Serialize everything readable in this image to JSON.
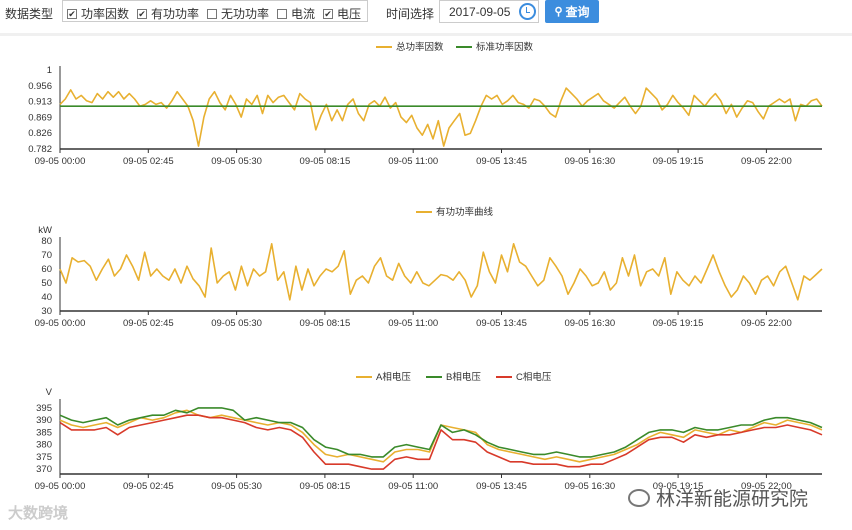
{
  "toolbar": {
    "data_type_label": "数据类型",
    "options": [
      {
        "label": "功率因数",
        "checked": true
      },
      {
        "label": "有功功率",
        "checked": true
      },
      {
        "label": "无功功率",
        "checked": false
      },
      {
        "label": "电流",
        "checked": false
      },
      {
        "label": "电压",
        "checked": true
      }
    ],
    "time_label": "时间选择",
    "date_value": "2017-09-05",
    "query_label": "查询",
    "accent": "#3c8dde"
  },
  "watermarks": {
    "left": "大数跨境",
    "right": "林洋新能源研究院"
  },
  "chart_data": [
    {
      "type": "line",
      "x_ticks": [
        "09-05 00:00",
        "09-05 02:45",
        "09-05 05:30",
        "09-05 08:15",
        "09-05 11:00",
        "09-05 13:45",
        "09-05 16:30",
        "09-05 19:15",
        "09-05 22:00"
      ],
      "y_ticks": [
        "1",
        "0.956",
        "0.913",
        "0.869",
        "0.826",
        "0.782"
      ],
      "ylim": [
        0.782,
        1
      ],
      "ylabel": "",
      "series": [
        {
          "name": "总功率因数",
          "color": "#e8b030",
          "values": [
            0.905,
            0.92,
            0.945,
            0.92,
            0.93,
            0.915,
            0.91,
            0.935,
            0.92,
            0.94,
            0.925,
            0.94,
            0.92,
            0.935,
            0.92,
            0.9,
            0.905,
            0.915,
            0.905,
            0.91,
            0.895,
            0.915,
            0.94,
            0.92,
            0.9,
            0.86,
            0.79,
            0.87,
            0.92,
            0.94,
            0.91,
            0.89,
            0.93,
            0.905,
            0.87,
            0.92,
            0.905,
            0.93,
            0.88,
            0.93,
            0.91,
            0.925,
            0.93,
            0.91,
            0.89,
            0.935,
            0.92,
            0.91,
            0.835,
            0.875,
            0.905,
            0.86,
            0.89,
            0.86,
            0.905,
            0.92,
            0.88,
            0.86,
            0.905,
            0.915,
            0.9,
            0.925,
            0.895,
            0.91,
            0.87,
            0.855,
            0.875,
            0.84,
            0.82,
            0.85,
            0.81,
            0.86,
            0.79,
            0.84,
            0.86,
            0.88,
            0.82,
            0.825,
            0.86,
            0.9,
            0.93,
            0.92,
            0.93,
            0.905,
            0.915,
            0.93,
            0.91,
            0.905,
            0.895,
            0.92,
            0.915,
            0.9,
            0.88,
            0.87,
            0.915,
            0.95,
            0.935,
            0.92,
            0.9,
            0.915,
            0.925,
            0.935,
            0.915,
            0.905,
            0.895,
            0.91,
            0.925,
            0.9,
            0.88,
            0.9,
            0.95,
            0.935,
            0.92,
            0.89,
            0.905,
            0.93,
            0.91,
            0.895,
            0.875,
            0.93,
            0.915,
            0.9,
            0.92,
            0.935,
            0.915,
            0.88,
            0.905,
            0.87,
            0.895,
            0.915,
            0.91,
            0.885,
            0.865,
            0.9,
            0.91,
            0.92,
            0.91,
            0.92,
            0.86,
            0.905,
            0.9,
            0.915,
            0.92,
            0.9
          ]
        },
        {
          "name": "标准功率因数",
          "color": "#3a8a2a",
          "values": [
            0.9,
            0.9
          ]
        }
      ]
    },
    {
      "type": "line",
      "x_ticks": [
        "09-05 00:00",
        "09-05 02:45",
        "09-05 05:30",
        "09-05 08:15",
        "09-05 11:00",
        "09-05 13:45",
        "09-05 16:30",
        "09-05 19:15",
        "09-05 22:00"
      ],
      "y_ticks": [
        "80",
        "70",
        "60",
        "50",
        "40",
        "30"
      ],
      "ylim": [
        30,
        80
      ],
      "ylabel": "kW",
      "series": [
        {
          "name": "有功功率曲线",
          "color": "#e8b030",
          "values": [
            60,
            50,
            68,
            65,
            66,
            62,
            52,
            60,
            67,
            55,
            60,
            70,
            62,
            52,
            72,
            55,
            60,
            55,
            52,
            60,
            50,
            62,
            53,
            48,
            40,
            75,
            50,
            55,
            58,
            45,
            62,
            48,
            60,
            55,
            58,
            78,
            52,
            58,
            38,
            62,
            45,
            60,
            48,
            55,
            60,
            58,
            62,
            73,
            42,
            52,
            55,
            50,
            62,
            68,
            55,
            52,
            64,
            55,
            50,
            58,
            50,
            48,
            52,
            56,
            55,
            52,
            58,
            52,
            40,
            48,
            72,
            58,
            50,
            70,
            58,
            78,
            65,
            62,
            55,
            48,
            52,
            68,
            62,
            55,
            42,
            50,
            60,
            55,
            48,
            50,
            58,
            45,
            50,
            68,
            55,
            70,
            48,
            58,
            60,
            55,
            68,
            42,
            58,
            52,
            48,
            55,
            50,
            60,
            70,
            58,
            48,
            40,
            45,
            55,
            50,
            42,
            52,
            55,
            48,
            58,
            62,
            50,
            38,
            55,
            52,
            56,
            60
          ]
        }
      ]
    },
    {
      "type": "line",
      "x_ticks": [
        "09-05 00:00",
        "09-05 02:45",
        "09-05 05:30",
        "09-05 08:15",
        "09-05 11:00",
        "09-05 13:45",
        "09-05 16:30",
        "09-05 19:15",
        "09-05 22:00"
      ],
      "y_ticks": [
        "395",
        "390",
        "385",
        "380",
        "375",
        "370"
      ],
      "ylim": [
        368,
        397
      ],
      "ylabel": "V",
      "series": [
        {
          "name": "A相电压",
          "color": "#e8b030",
          "values": [
            390,
            388,
            387,
            388,
            389,
            387,
            389,
            391,
            390,
            391,
            393,
            394,
            392,
            391,
            392,
            391,
            390,
            389,
            388,
            389,
            388,
            385,
            380,
            376,
            375,
            376,
            375,
            374,
            373,
            377,
            378,
            378,
            377,
            388,
            387,
            386,
            385,
            380,
            378,
            377,
            376,
            375,
            374,
            375,
            374,
            373,
            374,
            375,
            376,
            378,
            380,
            383,
            385,
            384,
            383,
            386,
            385,
            384,
            386,
            385,
            387,
            389,
            388,
            390,
            389,
            388,
            386
          ]
        },
        {
          "name": "B相电压",
          "color": "#3a8a2a",
          "values": [
            392,
            390,
            389,
            390,
            391,
            388,
            390,
            391,
            392,
            392,
            394,
            393,
            395,
            395,
            395,
            394,
            390,
            391,
            390,
            389,
            389,
            387,
            382,
            379,
            378,
            376,
            376,
            375,
            375,
            379,
            380,
            379,
            378,
            388,
            385,
            386,
            384,
            381,
            379,
            378,
            377,
            376,
            376,
            377,
            376,
            375,
            375,
            376,
            377,
            379,
            382,
            385,
            386,
            386,
            385,
            387,
            386,
            386,
            387,
            388,
            388,
            390,
            391,
            391,
            390,
            389,
            387
          ]
        },
        {
          "name": "C相电压",
          "color": "#d83a2a",
          "values": [
            389,
            386,
            386,
            386,
            387,
            384,
            387,
            388,
            389,
            390,
            391,
            392,
            392,
            391,
            391,
            390,
            389,
            387,
            386,
            387,
            386,
            383,
            377,
            372,
            372,
            372,
            371,
            370,
            370,
            374,
            375,
            374,
            374,
            386,
            382,
            382,
            381,
            377,
            375,
            373,
            373,
            372,
            372,
            372,
            371,
            371,
            372,
            372,
            374,
            376,
            379,
            382,
            383,
            383,
            381,
            384,
            383,
            384,
            384,
            385,
            386,
            387,
            387,
            388,
            387,
            386,
            384
          ]
        }
      ]
    }
  ]
}
